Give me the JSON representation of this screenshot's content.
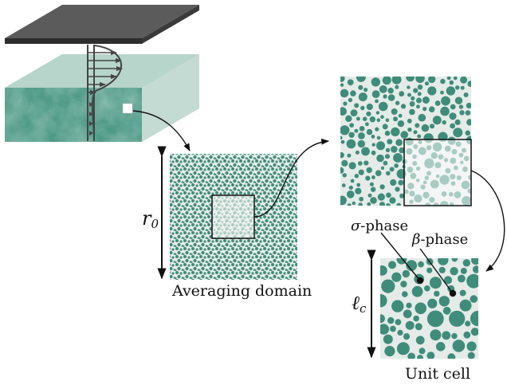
{
  "labels": {
    "averaging_domain": "Averaging domain",
    "unit_cell": "Unit cell",
    "r0_symbol": "r",
    "r0_subscript": "0",
    "lc_symbol": "ℓ",
    "lc_subscript": "c",
    "sigma_symbol": "σ",
    "sigma_text": "-phase",
    "beta_symbol": "β",
    "beta_text": "-phase"
  },
  "colors": {
    "grain": "#3f8c7a",
    "grain_light": "#9ec8bb",
    "plate_top": "#5b5b5b",
    "plate_edge": "#2e2e2e",
    "velocity_profile": "#444444"
  }
}
